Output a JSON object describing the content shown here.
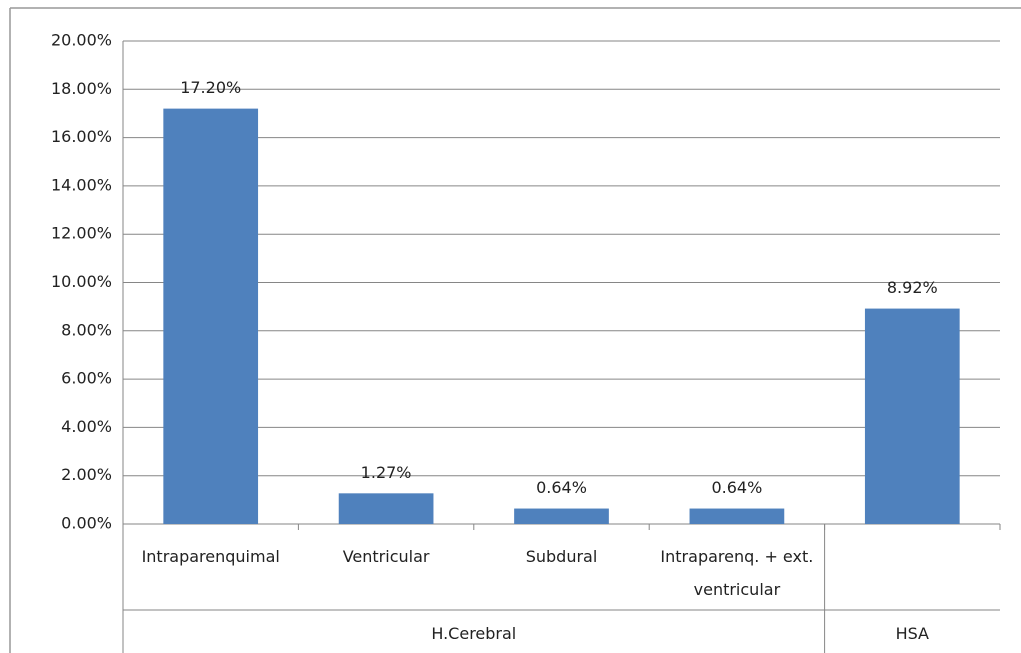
{
  "chart_data": {
    "type": "bar",
    "categories": [
      "Intraparenquimal",
      "Ventricular",
      "Subdural",
      "Intraparenq. + ext. ventricular",
      null
    ],
    "groups": [
      "H.Cerebral",
      "H.Cerebral",
      "H.Cerebral",
      "H.Cerebral",
      "HSA"
    ],
    "values": [
      17.2,
      1.27,
      0.64,
      0.64,
      8.92
    ],
    "value_labels": [
      "17.20%",
      "1.27%",
      "0.64%",
      "0.64%",
      "8.92%"
    ],
    "color": "#4f81bd",
    "ylim": [
      0,
      20
    ],
    "yticks": [
      {
        "value": 0,
        "label": "0.00%"
      },
      {
        "value": 2,
        "label": "2.00%"
      },
      {
        "value": 4,
        "label": "4.00%"
      },
      {
        "value": 6,
        "label": "6.00%"
      },
      {
        "value": 8,
        "label": "8.00%"
      },
      {
        "value": 10,
        "label": "10.00%"
      },
      {
        "value": 12,
        "label": "12.00%"
      },
      {
        "value": 14,
        "label": "14.00%"
      },
      {
        "value": 16,
        "label": "16.00%"
      },
      {
        "value": 18,
        "label": "18.00%"
      },
      {
        "value": 20,
        "label": "20.00%"
      }
    ],
    "grid": true
  }
}
